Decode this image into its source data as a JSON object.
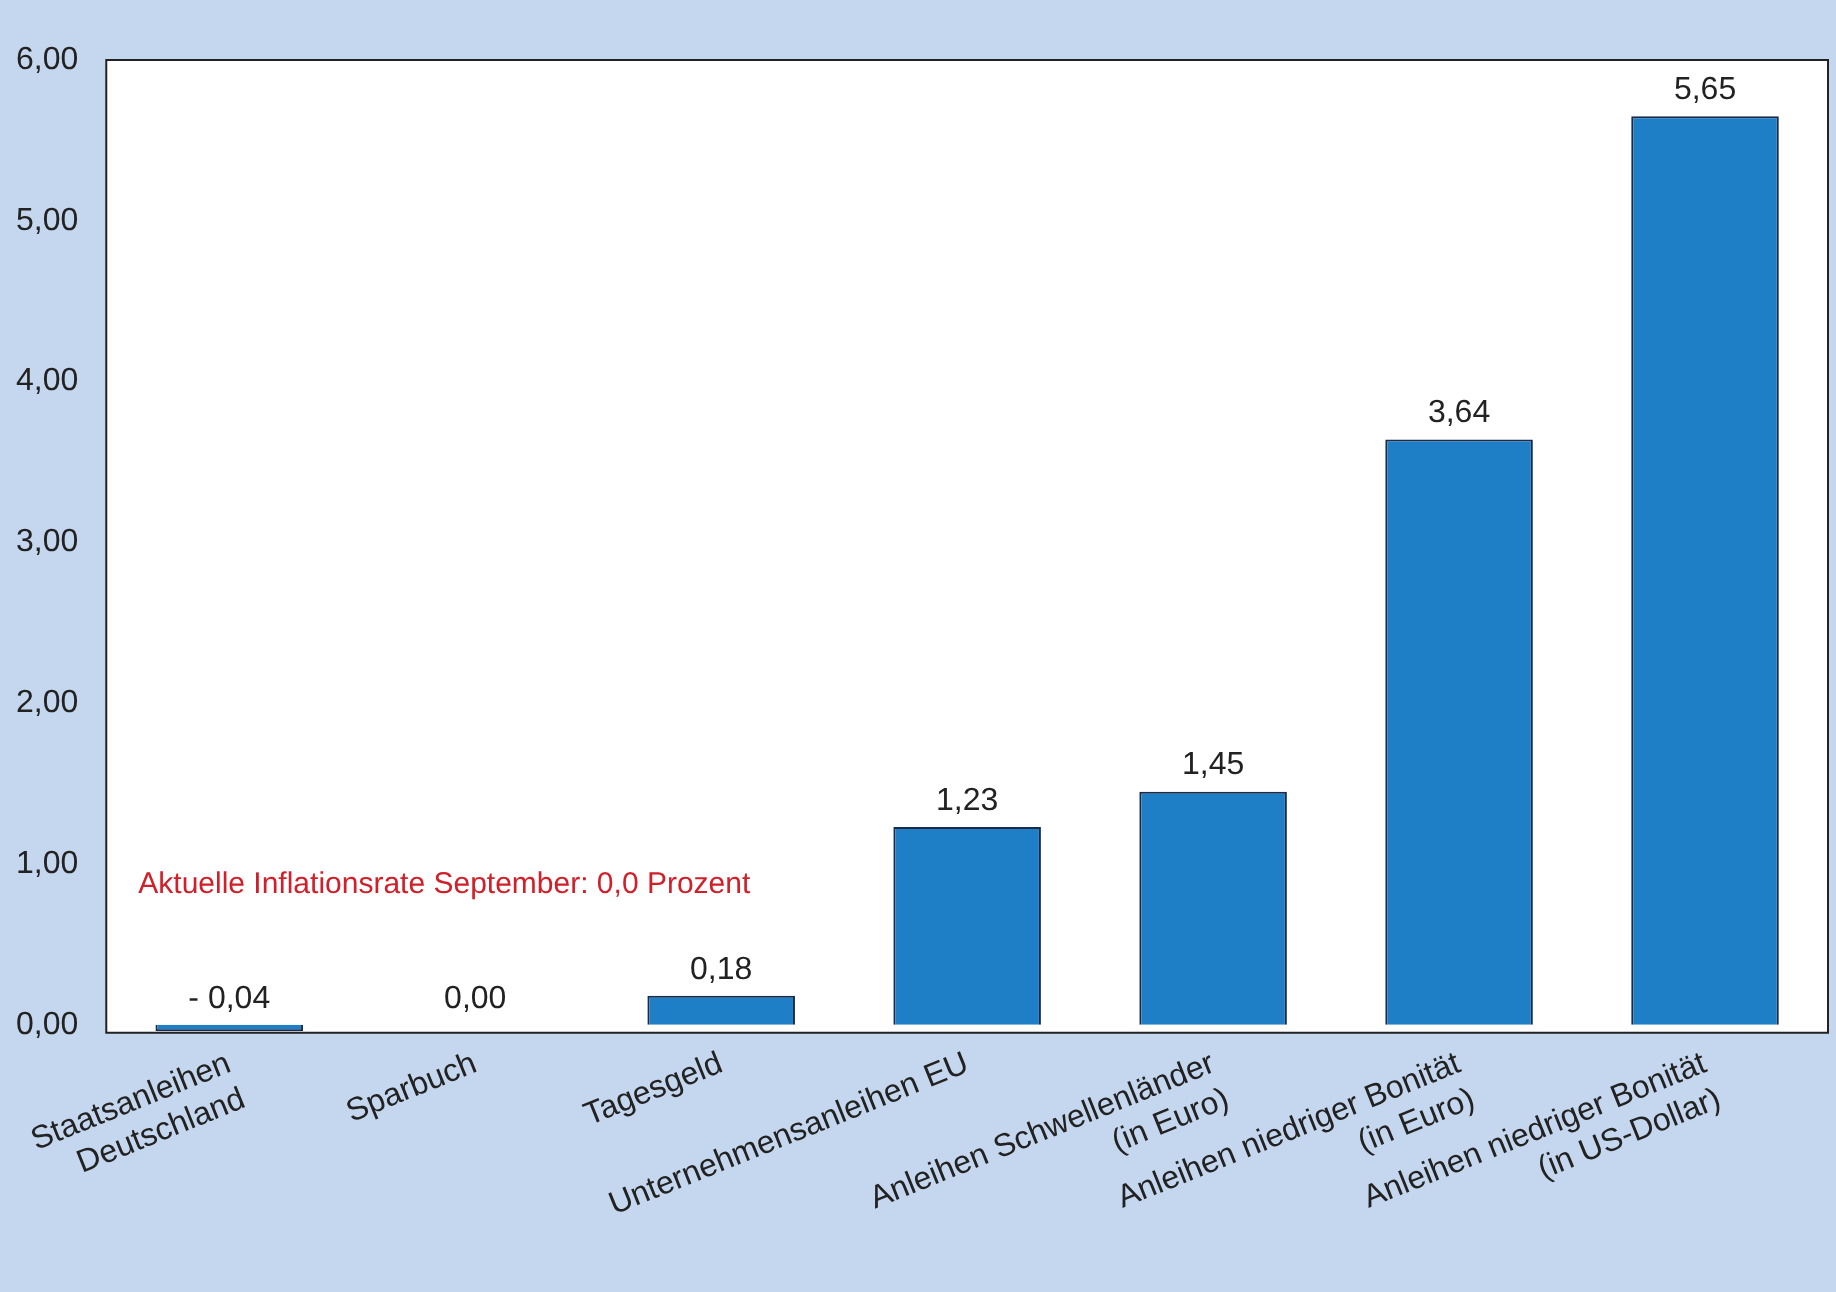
{
  "chart_data": {
    "type": "bar",
    "categories": [
      "Staatsanleihen\nDeutschland",
      "Sparbuch",
      "Tagesgeld",
      "Unternehmensanleihen EU",
      "Anleihen Schwellenländer\n(in Euro)",
      "Anleihen niedriger Bonität\n(in Euro)",
      "Anleihen niedriger Bonität\n(in US-Dollar)"
    ],
    "values": [
      -0.04,
      0,
      0.18,
      1.23,
      1.45,
      3.64,
      5.65
    ],
    "color": "#1f7fc6",
    "value_labels": [
      "- 0,04",
      "0,00",
      "0,18",
      "1,23",
      "1,45",
      "3,64",
      "5,65"
    ],
    "ylim": [
      -0.05,
      6
    ],
    "yticks": [
      {
        "value": 0,
        "label": "0,00"
      },
      {
        "value": 1,
        "label": "1,00"
      },
      {
        "value": 2,
        "label": "2,00"
      },
      {
        "value": 3,
        "label": "3,00"
      },
      {
        "value": 4,
        "label": "4,00"
      },
      {
        "value": 5,
        "label": "5,00"
      },
      {
        "value": 6,
        "label": "6,00"
      }
    ],
    "grid": false,
    "legend": false,
    "annotations": [
      "Aktuelle Inflationsrate September: 0,0 Prozent"
    ]
  }
}
